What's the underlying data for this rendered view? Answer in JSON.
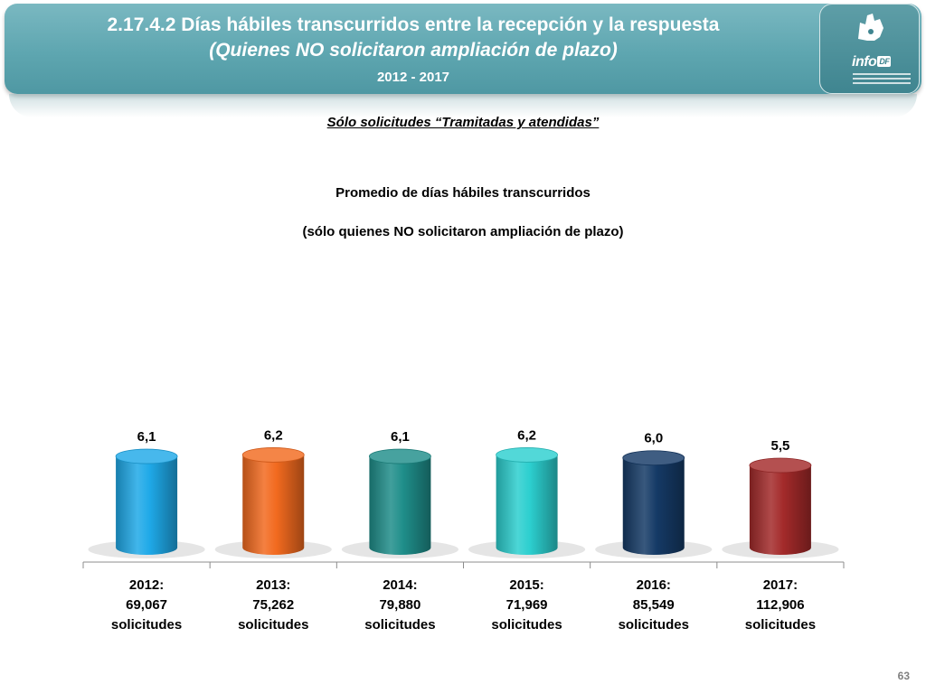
{
  "header": {
    "title_line1": "2.17.4.2 Días hábiles transcurridos entre la recepción y la respuesta",
    "title_line2": "(Quienes NO solicitaron ampliación de plazo)",
    "years": "2012 - 2017"
  },
  "logo": {
    "text": "info",
    "badge": "DF"
  },
  "subtitle": "Sólo solicitudes “Tramitadas y atendidas”",
  "page_number": "63",
  "chart_data": {
    "type": "bar",
    "title": "Promedio de días hábiles transcurridos",
    "subtitle": "(sólo quienes NO solicitaron ampliación de plazo)",
    "xlabel": "",
    "ylabel": "",
    "ylim": [
      0,
      7
    ],
    "grid": false,
    "categories": [
      "2012:",
      "2013:",
      "2014:",
      "2015:",
      "2016:",
      "2017:"
    ],
    "category_counts": [
      "69,067",
      "75,262",
      "79,880",
      "71,969",
      "85,549",
      "112,906"
    ],
    "category_unit": "solicitudes",
    "values": [
      6.1,
      6.2,
      6.1,
      6.2,
      6.0,
      5.5
    ],
    "value_labels": [
      "6,1",
      "6,2",
      "6,1",
      "6,2",
      "6,0",
      "5,5"
    ],
    "colors": [
      "#1fa9e8",
      "#f26a1f",
      "#1f8e8a",
      "#2ccfcf",
      "#153a66",
      "#a32a2a"
    ]
  }
}
